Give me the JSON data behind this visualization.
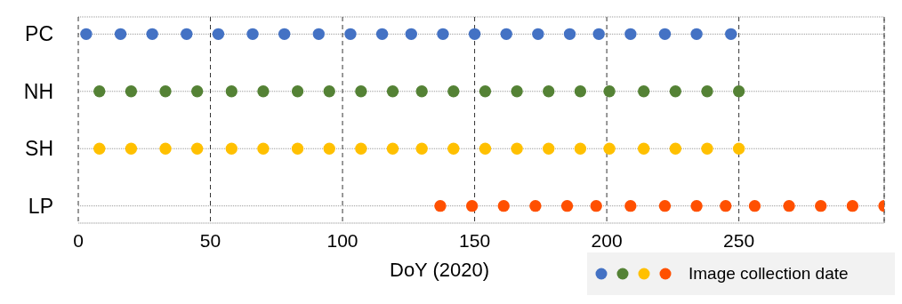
{
  "chart_data": {
    "type": "scatter",
    "orientation": "horizontal",
    "xlabel": "DoY (2020)",
    "legend_title": "Image collection date",
    "grid": true,
    "marker": "circle",
    "xlim": [
      0,
      305
    ],
    "xticks": [
      0,
      50,
      100,
      150,
      200,
      250
    ],
    "categories": [
      "PC",
      "NH",
      "SH",
      "LP"
    ],
    "series": [
      {
        "color": "#4472c4",
        "x": [
          "PC",
          "PC",
          "PC",
          "PC",
          "PC",
          "PC",
          "PC",
          "PC",
          "PC",
          "PC",
          "PC",
          "PC",
          "PC",
          "PC",
          "PC",
          "PC",
          "PC",
          "PC",
          "PC",
          "PC",
          "PC"
        ],
        "values": [
          3,
          16,
          28,
          41,
          53,
          66,
          78,
          91,
          103,
          115,
          126,
          138,
          150,
          162,
          174,
          186,
          197,
          209,
          222,
          234,
          247
        ]
      },
      {
        "color": "#548235",
        "x": [
          "NH",
          "NH",
          "NH",
          "NH",
          "NH",
          "NH",
          "NH",
          "NH",
          "NH",
          "NH",
          "NH",
          "NH",
          "NH",
          "NH",
          "NH",
          "NH",
          "NH",
          "NH",
          "NH",
          "NH",
          "NH"
        ],
        "values": [
          8,
          20,
          33,
          45,
          58,
          70,
          83,
          95,
          107,
          119,
          130,
          142,
          154,
          166,
          178,
          190,
          201,
          214,
          226,
          238,
          250
        ]
      },
      {
        "color": "#ffc000",
        "x": [
          "SH",
          "SH",
          "SH",
          "SH",
          "SH",
          "SH",
          "SH",
          "SH",
          "SH",
          "SH",
          "SH",
          "SH",
          "SH",
          "SH",
          "SH",
          "SH",
          "SH",
          "SH",
          "SH",
          "SH",
          "SH"
        ],
        "values": [
          8,
          20,
          33,
          45,
          58,
          70,
          83,
          95,
          107,
          119,
          130,
          142,
          154,
          166,
          178,
          190,
          201,
          214,
          226,
          238,
          250
        ]
      },
      {
        "color": "#ff5000",
        "x": [
          "LP",
          "LP",
          "LP",
          "LP",
          "LP",
          "LP",
          "LP",
          "LP",
          "LP",
          "LP",
          "LP",
          "LP",
          "LP",
          "LP",
          "LP"
        ],
        "values": [
          137,
          149,
          161,
          173,
          185,
          196,
          209,
          222,
          234,
          245,
          256,
          269,
          281,
          293,
          305
        ]
      }
    ]
  }
}
